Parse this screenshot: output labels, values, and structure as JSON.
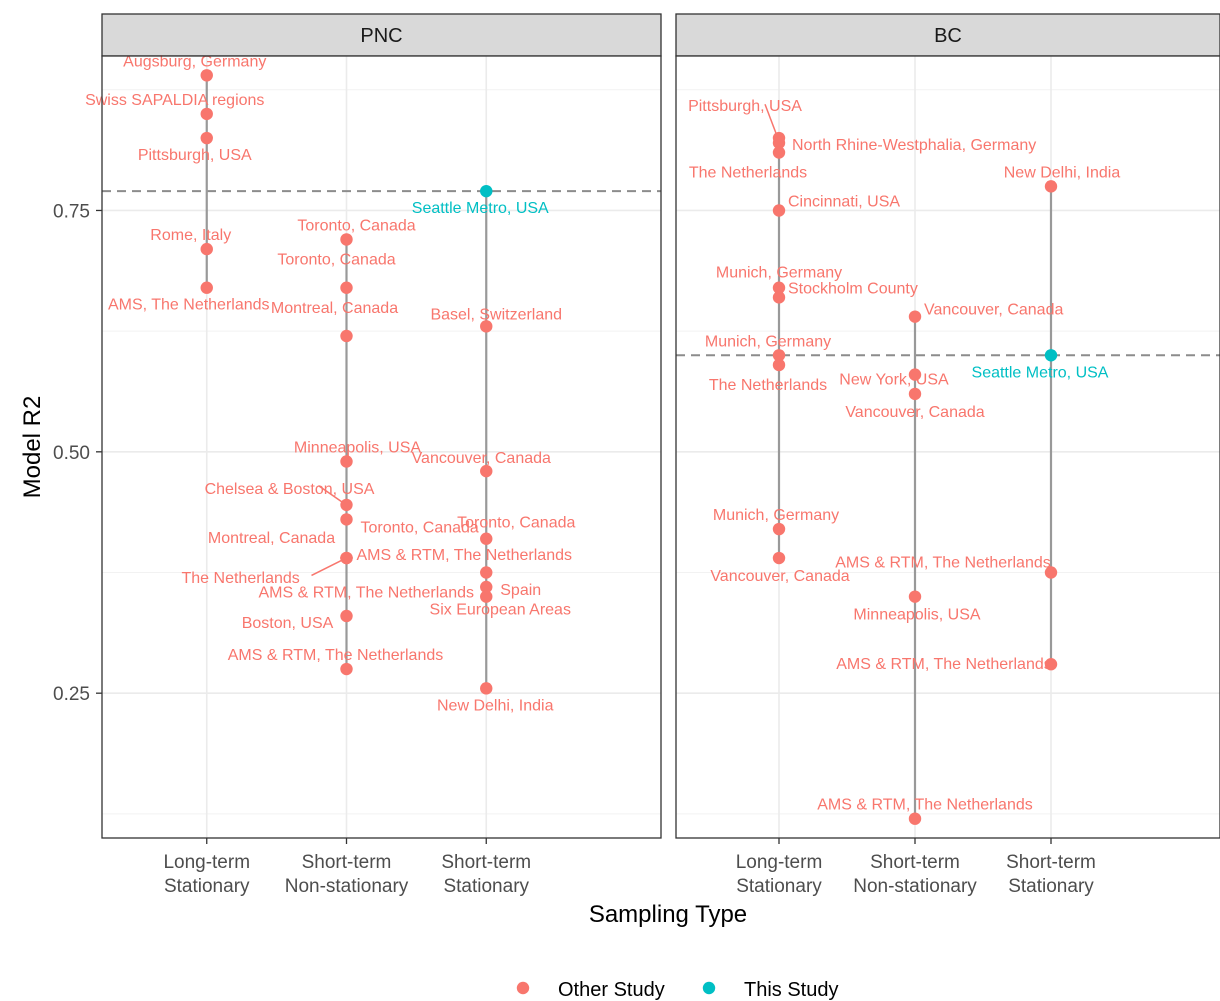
{
  "chart_data": {
    "type": "scatter",
    "xlabel": "Sampling Type",
    "ylabel": "Model R2",
    "ylim": [
      0.1,
      0.91
    ],
    "yticks": [
      "0.25",
      "0.50",
      "0.75"
    ],
    "ytick_values": [
      0.25,
      0.5,
      0.75
    ],
    "categories": [
      "Long-term Stationary",
      "Short-term Non-stationary",
      "Short-term Stationary"
    ],
    "category_lines": [
      [
        "Long-term",
        "Stationary"
      ],
      [
        "Short-term",
        "Non-stationary"
      ],
      [
        "Short-term",
        "Stationary"
      ]
    ],
    "grid": true,
    "legend_position": "bottom",
    "legend": [
      {
        "label": "Other Study",
        "color": "#F8766D"
      },
      {
        "label": "This Study",
        "color": "#00BFC4"
      }
    ],
    "panels": [
      {
        "title": "PNC",
        "reference_line": 0.77,
        "points": [
          {
            "category": 0,
            "y": 0.89,
            "label": "Augsburg, Germany",
            "study": "other"
          },
          {
            "category": 0,
            "y": 0.85,
            "label": "Swiss SAPALDIA regions",
            "study": "other"
          },
          {
            "category": 0,
            "y": 0.825,
            "label": "Pittsburgh, USA",
            "study": "other"
          },
          {
            "category": 0,
            "y": 0.71,
            "label": "Rome, Italy",
            "study": "other"
          },
          {
            "category": 0,
            "y": 0.67,
            "label": "AMS, The Netherlands",
            "study": "other"
          },
          {
            "category": 1,
            "y": 0.72,
            "label": "Toronto, Canada",
            "study": "other"
          },
          {
            "category": 1,
            "y": 0.67,
            "label": "Toronto, Canada",
            "study": "other"
          },
          {
            "category": 1,
            "y": 0.62,
            "label": "Montreal, Canada",
            "study": "other"
          },
          {
            "category": 1,
            "y": 0.49,
            "label": "Minneapolis, USA",
            "study": "other"
          },
          {
            "category": 1,
            "y": 0.445,
            "label": "Chelsea & Boston, USA",
            "study": "other"
          },
          {
            "category": 1,
            "y": 0.43,
            "label": "Toronto, Canada",
            "study": "other"
          },
          {
            "category": 1,
            "y": 0.39,
            "label": "Montreal, Canada",
            "study": "other"
          },
          {
            "category": 1,
            "y": 0.39,
            "label": "AMS & RTM, The Netherlands",
            "study": "other"
          },
          {
            "category": 1,
            "y": 0.39,
            "label": "The Netherlands",
            "study": "other"
          },
          {
            "category": 1,
            "y": 0.33,
            "label": "Boston, USA",
            "study": "other"
          },
          {
            "category": 1,
            "y": 0.275,
            "label": "AMS & RTM, The Netherlands",
            "study": "other"
          },
          {
            "category": 2,
            "y": 0.77,
            "label": "Seattle Metro, USA",
            "study": "this"
          },
          {
            "category": 2,
            "y": 0.63,
            "label": "Basel, Switzerland",
            "study": "other"
          },
          {
            "category": 2,
            "y": 0.48,
            "label": "Vancouver, Canada",
            "study": "other"
          },
          {
            "category": 2,
            "y": 0.41,
            "label": "Toronto, Canada",
            "study": "other"
          },
          {
            "category": 2,
            "y": 0.375,
            "label": "AMS & RTM, The Netherlands",
            "study": "other"
          },
          {
            "category": 2,
            "y": 0.36,
            "label": "Spain",
            "study": "other"
          },
          {
            "category": 2,
            "y": 0.35,
            "label": "Six European Areas",
            "study": "other"
          },
          {
            "category": 2,
            "y": 0.255,
            "label": "New Delhi, India",
            "study": "other"
          }
        ]
      },
      {
        "title": "BC",
        "reference_line": 0.6,
        "points": [
          {
            "category": 0,
            "y": 0.825,
            "label": "Pittsburgh, USA",
            "study": "other"
          },
          {
            "category": 0,
            "y": 0.82,
            "label": "North Rhine-Westphalia, Germany",
            "study": "other"
          },
          {
            "category": 0,
            "y": 0.81,
            "label": "The Netherlands",
            "study": "other"
          },
          {
            "category": 0,
            "y": 0.75,
            "label": "Cincinnati, USA",
            "study": "other"
          },
          {
            "category": 0,
            "y": 0.67,
            "label": "Munich, Germany",
            "study": "other"
          },
          {
            "category": 0,
            "y": 0.66,
            "label": "Stockholm County",
            "study": "other"
          },
          {
            "category": 0,
            "y": 0.6,
            "label": "Munich, Germany",
            "study": "other"
          },
          {
            "category": 0,
            "y": 0.59,
            "label": "The Netherlands",
            "study": "other"
          },
          {
            "category": 0,
            "y": 0.42,
            "label": "Munich, Germany",
            "study": "other"
          },
          {
            "category": 0,
            "y": 0.39,
            "label": "Vancouver, Canada",
            "study": "other"
          },
          {
            "category": 1,
            "y": 0.64,
            "label": "Vancouver, Canada",
            "study": "other"
          },
          {
            "category": 1,
            "y": 0.58,
            "label": "New York, USA",
            "study": "other"
          },
          {
            "category": 1,
            "y": 0.56,
            "label": "Vancouver, Canada",
            "study": "other"
          },
          {
            "category": 1,
            "y": 0.35,
            "label": "Minneapolis, USA",
            "study": "other"
          },
          {
            "category": 1,
            "y": 0.12,
            "label": "AMS & RTM, The Netherlands",
            "study": "other"
          },
          {
            "category": 2,
            "y": 0.775,
            "label": "New Delhi, India",
            "study": "other"
          },
          {
            "category": 2,
            "y": 0.6,
            "label": "Seattle Metro, USA",
            "study": "this"
          },
          {
            "category": 2,
            "y": 0.375,
            "label": "AMS & RTM, The Netherlands",
            "study": "other"
          },
          {
            "category": 2,
            "y": 0.28,
            "label": "AMS & RTM, The Netherlands",
            "study": "other"
          }
        ]
      }
    ]
  }
}
